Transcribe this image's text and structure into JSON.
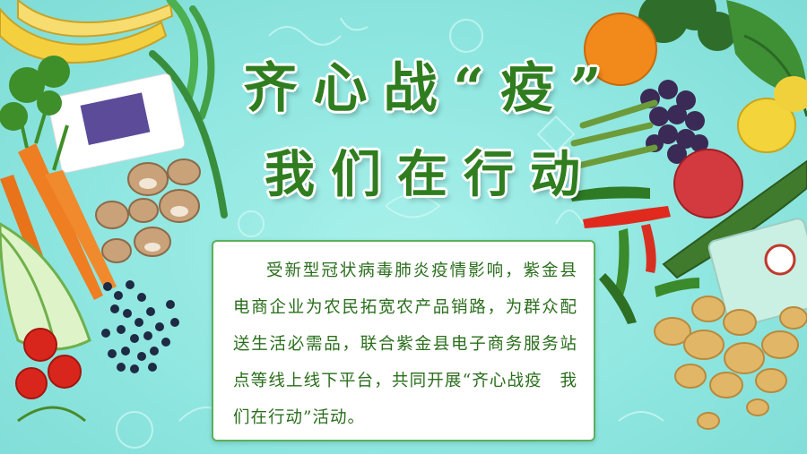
{
  "poster": {
    "title_line1": "齐心战“疫”",
    "title_line2": "我们在行动",
    "body_text": "受新型冠状病毒肺炎疫情影响，紫金县电商企业为农民拓宽农产品销路，为群众配送生活必需品，联合紫金县电子商务服务站点等线上线下平台，共同开展“齐心战疫　我们在行动”活动。"
  },
  "colors": {
    "background": "#8fe6e0",
    "title_green": "#2f7d1f",
    "text_green": "#2a6e1c",
    "box_border": "#5ab05a"
  }
}
